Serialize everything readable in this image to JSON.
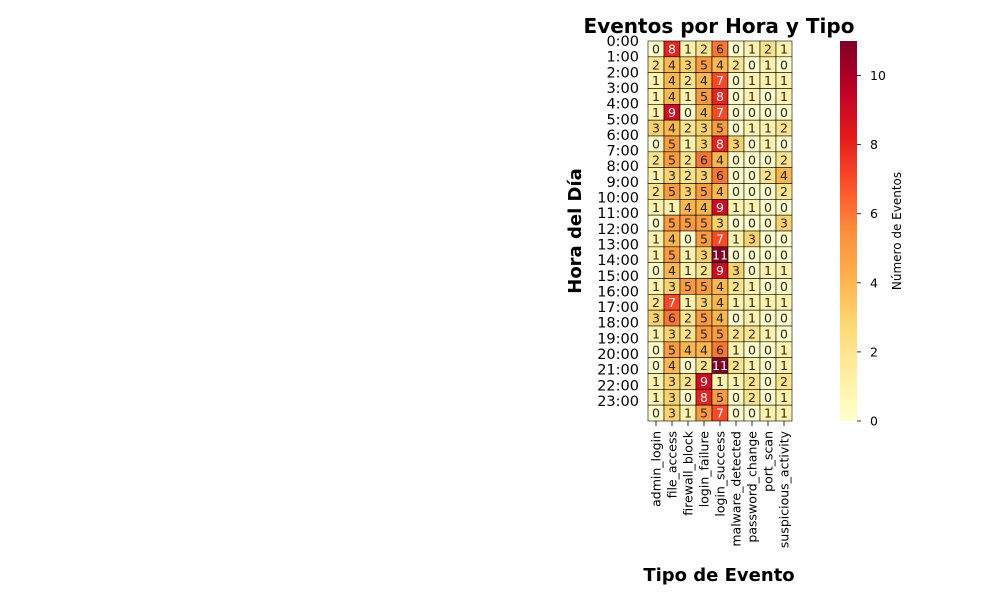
{
  "chart_data": {
    "type": "heatmap",
    "title": "Eventos por Hora y Tipo",
    "xlabel": "Tipo de Evento",
    "ylabel": "Hora del Día",
    "colorbar_label": "Número de Eventos",
    "colormap": "YlOrRd",
    "value_range": [
      0,
      11
    ],
    "colorbar_ticks": [
      0,
      2,
      4,
      6,
      8,
      10
    ],
    "annotations": true,
    "x_categories": [
      "admin_login",
      "file_access",
      "firewall_block",
      "login_failure",
      "login_success",
      "malware_detected",
      "password_change",
      "port_scan",
      "suspicious_activity"
    ],
    "y_tick_labels": [
      "0:00",
      "1:00",
      "2:00",
      "3:00",
      "4:00",
      "5:00",
      "6:00",
      "7:00",
      "8:00",
      "9:00",
      "10:00",
      "11:00",
      "12:00",
      "13:00",
      "14:00",
      "15:00",
      "16:00",
      "17:00",
      "18:00",
      "19:00",
      "20:00",
      "21:00",
      "22:00",
      "23:00"
    ],
    "values": [
      [
        0,
        8,
        1,
        2,
        6,
        0,
        1,
        2,
        1
      ],
      [
        2,
        4,
        3,
        5,
        4,
        2,
        0,
        1,
        0
      ],
      [
        1,
        4,
        2,
        4,
        7,
        0,
        1,
        1,
        1
      ],
      [
        1,
        4,
        1,
        5,
        8,
        0,
        1,
        0,
        1
      ],
      [
        1,
        9,
        0,
        4,
        7,
        0,
        0,
        0,
        0
      ],
      [
        3,
        4,
        2,
        3,
        5,
        0,
        1,
        1,
        2
      ],
      [
        0,
        5,
        1,
        3,
        8,
        3,
        0,
        1,
        0
      ],
      [
        2,
        5,
        2,
        6,
        4,
        0,
        0,
        0,
        2
      ],
      [
        1,
        3,
        2,
        3,
        6,
        0,
        0,
        2,
        4
      ],
      [
        2,
        5,
        3,
        5,
        4,
        0,
        0,
        0,
        2
      ],
      [
        1,
        1,
        4,
        4,
        9,
        1,
        1,
        0,
        0
      ],
      [
        0,
        5,
        5,
        5,
        3,
        0,
        0,
        0,
        3
      ],
      [
        1,
        4,
        0,
        5,
        7,
        1,
        3,
        0,
        0
      ],
      [
        1,
        5,
        1,
        3,
        11,
        0,
        0,
        0,
        0
      ],
      [
        0,
        4,
        1,
        2,
        9,
        3,
        0,
        1,
        1
      ],
      [
        1,
        3,
        5,
        5,
        4,
        2,
        1,
        0,
        0
      ],
      [
        2,
        7,
        1,
        3,
        4,
        1,
        1,
        1,
        1
      ],
      [
        3,
        6,
        2,
        5,
        4,
        0,
        1,
        0,
        0
      ],
      [
        1,
        3,
        2,
        5,
        5,
        2,
        2,
        1,
        0
      ],
      [
        0,
        5,
        4,
        4,
        6,
        1,
        0,
        0,
        1
      ],
      [
        0,
        4,
        0,
        2,
        11,
        2,
        1,
        0,
        1
      ],
      [
        1,
        3,
        2,
        9,
        1,
        1,
        2,
        0,
        2
      ],
      [
        1,
        3,
        0,
        8,
        5,
        0,
        2,
        0,
        1
      ],
      [
        0,
        3,
        1,
        5,
        7,
        0,
        0,
        1,
        1
      ]
    ]
  }
}
